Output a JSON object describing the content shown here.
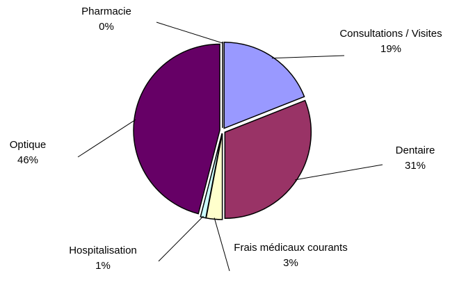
{
  "chart_data": {
    "type": "pie",
    "categories": [
      "Pharmacie",
      "Consultations / Visites",
      "Dentaire",
      "Frais médicaux courants",
      "Hospitalisation",
      "Optique"
    ],
    "values": [
      0,
      19,
      31,
      3,
      1,
      46
    ],
    "value_labels": [
      "0%",
      "19%",
      "31%",
      "3%",
      "1%",
      "46%"
    ],
    "colors": [
      "#ffffff",
      "#9999ff",
      "#993366",
      "#ffffcc",
      "#ccffff",
      "#660066"
    ]
  }
}
